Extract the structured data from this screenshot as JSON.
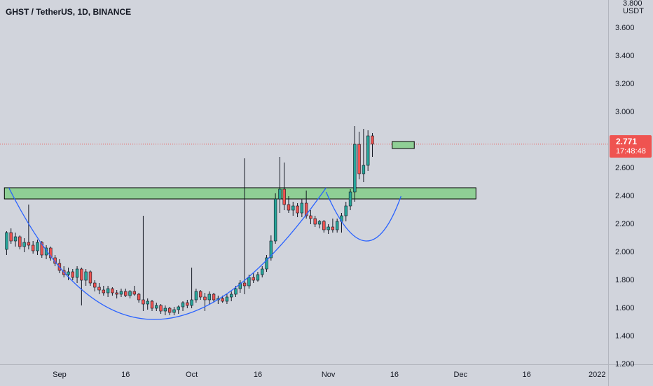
{
  "header": {
    "title": "GHST / TetherUS, 1D, BINANCE"
  },
  "price_axis": {
    "unit_top": "3.800",
    "unit": "USDT",
    "ticks": [
      "3.600",
      "3.400",
      "3.200",
      "3.000",
      "2.600",
      "2.400",
      "2.200",
      "2.000",
      "1.800",
      "1.600",
      "1.400",
      "1.200"
    ]
  },
  "time_axis": {
    "ticks": [
      "Sep",
      "16",
      "Oct",
      "16",
      "Nov",
      "16",
      "Dec",
      "16",
      "2022"
    ]
  },
  "last_price": {
    "price": "2.771",
    "countdown": "17:48:48",
    "value": 2.771
  },
  "colors": {
    "background": "#d1d4dc",
    "up": "#26a69a",
    "down": "#ef5350",
    "candle_body": "#3a3f4b",
    "zone_fill": "#8fcf95",
    "curve": "#2962ff",
    "price_line": "#ef5350"
  },
  "chart_data": {
    "type": "candlestick",
    "title": "GHST / TetherUS, 1D, BINANCE",
    "ylabel": "USDT",
    "ylim": [
      1.2,
      3.8
    ],
    "xlim": [
      "2021-08-19",
      "2022-01-04"
    ],
    "x_ticks": [
      "Sep",
      "16",
      "Oct",
      "16",
      "Nov",
      "16",
      "Dec",
      "16",
      "2022"
    ],
    "first_date": "2021-08-20",
    "ohlc": [
      [
        2.02,
        2.15,
        1.98,
        2.14
      ],
      [
        2.14,
        2.17,
        2.06,
        2.08
      ],
      [
        2.08,
        2.14,
        2.04,
        2.11
      ],
      [
        2.11,
        2.12,
        2.02,
        2.04
      ],
      [
        2.04,
        2.1,
        2.0,
        2.07
      ],
      [
        2.07,
        2.34,
        2.02,
        2.05
      ],
      [
        2.05,
        2.08,
        1.99,
        2.01
      ],
      [
        2.01,
        2.09,
        1.98,
        2.07
      ],
      [
        2.07,
        2.08,
        1.96,
        1.98
      ],
      [
        1.98,
        2.05,
        1.95,
        2.03
      ],
      [
        2.03,
        2.04,
        1.94,
        1.96
      ],
      [
        1.96,
        1.98,
        1.9,
        1.92
      ],
      [
        1.92,
        1.95,
        1.85,
        1.87
      ],
      [
        1.87,
        1.9,
        1.82,
        1.84
      ],
      [
        1.84,
        1.89,
        1.8,
        1.86
      ],
      [
        1.86,
        1.88,
        1.8,
        1.82
      ],
      [
        1.82,
        1.9,
        1.78,
        1.88
      ],
      [
        1.88,
        1.89,
        1.62,
        1.8
      ],
      [
        1.8,
        1.88,
        1.76,
        1.86
      ],
      [
        1.86,
        1.87,
        1.76,
        1.78
      ],
      [
        1.78,
        1.8,
        1.72,
        1.75
      ],
      [
        1.75,
        1.78,
        1.7,
        1.73
      ],
      [
        1.73,
        1.76,
        1.69,
        1.71
      ],
      [
        1.71,
        1.76,
        1.68,
        1.74
      ],
      [
        1.74,
        1.75,
        1.69,
        1.71
      ],
      [
        1.71,
        1.73,
        1.67,
        1.7
      ],
      [
        1.7,
        1.74,
        1.68,
        1.72
      ],
      [
        1.72,
        1.74,
        1.68,
        1.69
      ],
      [
        1.69,
        1.73,
        1.67,
        1.72
      ],
      [
        1.72,
        1.76,
        1.69,
        1.7
      ],
      [
        1.7,
        1.71,
        1.64,
        1.66
      ],
      [
        1.66,
        2.26,
        1.58,
        1.63
      ],
      [
        1.63,
        1.67,
        1.59,
        1.65
      ],
      [
        1.65,
        1.66,
        1.58,
        1.6
      ],
      [
        1.6,
        1.64,
        1.58,
        1.62
      ],
      [
        1.62,
        1.63,
        1.56,
        1.58
      ],
      [
        1.58,
        1.62,
        1.55,
        1.6
      ],
      [
        1.6,
        1.61,
        1.55,
        1.57
      ],
      [
        1.57,
        1.61,
        1.55,
        1.59
      ],
      [
        1.59,
        1.62,
        1.56,
        1.61
      ],
      [
        1.61,
        1.65,
        1.58,
        1.64
      ],
      [
        1.64,
        1.66,
        1.6,
        1.62
      ],
      [
        1.62,
        1.89,
        1.6,
        1.66
      ],
      [
        1.66,
        1.74,
        1.64,
        1.72
      ],
      [
        1.72,
        1.73,
        1.66,
        1.68
      ],
      [
        1.68,
        1.71,
        1.58,
        1.66
      ],
      [
        1.66,
        1.72,
        1.63,
        1.7
      ],
      [
        1.7,
        1.71,
        1.64,
        1.66
      ],
      [
        1.66,
        1.69,
        1.63,
        1.67
      ],
      [
        1.67,
        1.69,
        1.64,
        1.65
      ],
      [
        1.65,
        1.7,
        1.63,
        1.68
      ],
      [
        1.68,
        1.72,
        1.65,
        1.7
      ],
      [
        1.7,
        1.76,
        1.68,
        1.74
      ],
      [
        1.74,
        1.8,
        1.71,
        1.78
      ],
      [
        1.78,
        2.67,
        1.7,
        1.76
      ],
      [
        1.76,
        1.84,
        1.74,
        1.82
      ],
      [
        1.82,
        1.85,
        1.78,
        1.8
      ],
      [
        1.8,
        1.86,
        1.79,
        1.84
      ],
      [
        1.84,
        1.9,
        1.82,
        1.88
      ],
      [
        1.88,
        1.98,
        1.86,
        1.96
      ],
      [
        1.96,
        2.12,
        1.94,
        2.08
      ],
      [
        2.08,
        2.42,
        2.06,
        2.38
      ],
      [
        2.38,
        2.68,
        2.28,
        2.45
      ],
      [
        2.45,
        2.64,
        2.3,
        2.34
      ],
      [
        2.34,
        2.4,
        2.28,
        2.3
      ],
      [
        2.3,
        2.36,
        2.26,
        2.33
      ],
      [
        2.33,
        2.35,
        2.25,
        2.28
      ],
      [
        2.28,
        2.38,
        2.25,
        2.35
      ],
      [
        2.35,
        2.44,
        2.24,
        2.26
      ],
      [
        2.26,
        2.3,
        2.2,
        2.24
      ],
      [
        2.24,
        2.26,
        2.18,
        2.2
      ],
      [
        2.2,
        2.23,
        2.17,
        2.22
      ],
      [
        2.22,
        2.23,
        2.14,
        2.16
      ],
      [
        2.16,
        2.2,
        2.13,
        2.18
      ],
      [
        2.18,
        2.24,
        2.14,
        2.16
      ],
      [
        2.16,
        2.24,
        2.14,
        2.22
      ],
      [
        2.22,
        2.28,
        2.14,
        2.26
      ],
      [
        2.26,
        2.36,
        2.22,
        2.33
      ],
      [
        2.33,
        2.45,
        2.3,
        2.43
      ],
      [
        2.43,
        2.9,
        2.36,
        2.77
      ],
      [
        2.77,
        2.86,
        2.52,
        2.56
      ],
      [
        2.56,
        2.88,
        2.5,
        2.62
      ],
      [
        2.62,
        2.87,
        2.58,
        2.83
      ],
      [
        2.83,
        2.85,
        2.68,
        2.771
      ]
    ],
    "zones": [
      {
        "from": "2021-08-20",
        "to": "2021-12-05",
        "low": 2.38,
        "high": 2.46
      },
      {
        "from": "2021-11-16",
        "to": "2021-11-21",
        "low": 2.74,
        "high": 2.79
      }
    ],
    "curves": [
      {
        "points": [
          [
            "2021-08-21",
            2.46
          ],
          [
            "2021-09-23",
            1.52
          ],
          [
            "2021-11-01",
            2.46
          ]
        ]
      },
      {
        "points": [
          [
            "2021-11-01",
            2.43
          ],
          [
            "2021-11-10",
            2.08
          ],
          [
            "2021-11-18",
            2.4
          ]
        ]
      }
    ],
    "last_price": 2.771,
    "grid": false,
    "legend": "none"
  }
}
